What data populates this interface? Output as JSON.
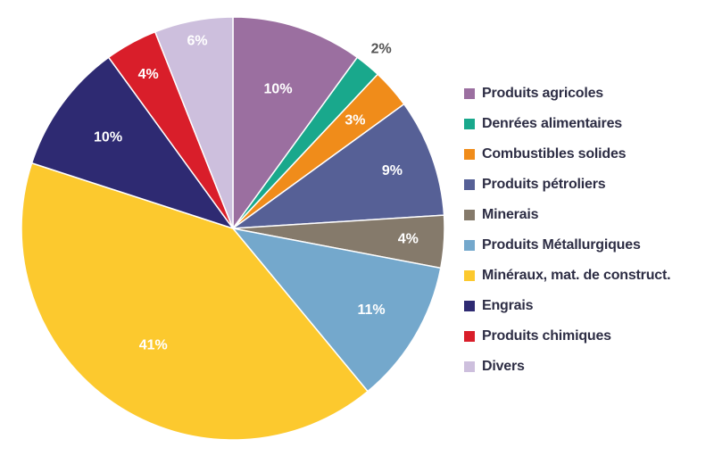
{
  "chart_data": {
    "type": "pie",
    "slices": [
      {
        "label": "Produits agricoles",
        "value": 10,
        "value_label": "10%",
        "color": "#9b6fa0",
        "label_color": "#ffffff"
      },
      {
        "label": "Denrées alimentaires",
        "value": 2,
        "value_label": "2%",
        "color": "#19a88c",
        "label_color": "#555555"
      },
      {
        "label": "Combustibles solides",
        "value": 3,
        "value_label": "3%",
        "color": "#f08c1a",
        "label_color": "#ffffff"
      },
      {
        "label": "Produits pétroliers",
        "value": 9,
        "value_label": "9%",
        "color": "#566096",
        "label_color": "#ffffff"
      },
      {
        "label": "Minerais",
        "value": 4,
        "value_label": "4%",
        "color": "#857a6b",
        "label_color": "#ffffff"
      },
      {
        "label": "Produits Métallurgiques",
        "value": 11,
        "value_label": "11%",
        "color": "#74a8cc",
        "label_color": "#ffffff"
      },
      {
        "label": "Minéraux, mat. de construct.",
        "value": 41,
        "value_label": "41%",
        "color": "#fcc92e",
        "label_color": "#ffffff"
      },
      {
        "label": "Engrais",
        "value": 10,
        "value_label": "10%",
        "color": "#2e2a72",
        "label_color": "#ffffff"
      },
      {
        "label": "Produits chimiques",
        "value": 4,
        "value_label": "4%",
        "color": "#d91e2a",
        "label_color": "#ffffff"
      },
      {
        "label": "Divers",
        "value": 6,
        "value_label": "6%",
        "color": "#cdbfdd",
        "label_color": "#ffffff"
      }
    ],
    "legend_position": "right"
  }
}
